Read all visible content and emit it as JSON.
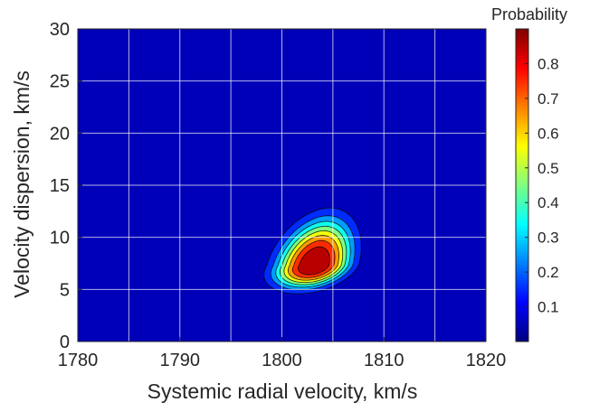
{
  "chart_data": {
    "type": "heatmap",
    "plot_style": "filled-contour",
    "xlabel": "Systemic radial velocity, km/s",
    "ylabel": "Velocity dispersion, km/s",
    "colorbar_label": "Probability",
    "xlim": [
      1780,
      1820
    ],
    "ylim": [
      0,
      30
    ],
    "x_ticks": [
      1780,
      1790,
      1800,
      1810,
      1820
    ],
    "x_tick_labels": [
      "1780",
      "1790",
      "1800",
      "1810",
      "1820"
    ],
    "y_ticks": [
      0,
      5,
      10,
      15,
      20,
      25,
      30
    ],
    "y_tick_labels": [
      "0",
      "5",
      "10",
      "15",
      "20",
      "25",
      "30"
    ],
    "colorbar_range": [
      0,
      0.9
    ],
    "colorbar_ticks": [
      0.1,
      0.2,
      0.3,
      0.4,
      0.5,
      0.6,
      0.7,
      0.8
    ],
    "colorbar_tick_labels": [
      "0.1",
      "0.2",
      "0.3",
      "0.4",
      "0.5",
      "0.6",
      "0.7",
      "0.8"
    ],
    "colormap": "jet",
    "grid": true,
    "peak": {
      "x": 1803.2,
      "y": 7.3,
      "value": 0.9
    },
    "contour_levels": [
      0.1,
      0.2,
      0.3,
      0.4,
      0.5,
      0.6,
      0.7,
      0.8
    ],
    "contours": [
      {
        "level": 0.1,
        "x_range": [
          1795.2,
          1810.6
        ],
        "y_range": [
          2.2,
          16.4
        ]
      },
      {
        "level": 0.2,
        "x_range": [
          1796.6,
          1808.9
        ],
        "y_range": [
          3.1,
          14.3
        ]
      },
      {
        "level": 0.3,
        "x_range": [
          1797.6,
          1808.1
        ],
        "y_range": [
          3.7,
          13.0
        ]
      },
      {
        "level": 0.4,
        "x_range": [
          1798.3,
          1807.5
        ],
        "y_range": [
          4.1,
          12.0
        ]
      },
      {
        "level": 0.5,
        "x_range": [
          1798.9,
          1806.9
        ],
        "y_range": [
          4.5,
          11.0
        ]
      },
      {
        "level": 0.6,
        "x_range": [
          1799.5,
          1806.4
        ],
        "y_range": [
          4.9,
          10.1
        ]
      },
      {
        "level": 0.7,
        "x_range": [
          1800.2,
          1805.8
        ],
        "y_range": [
          5.4,
          9.3
        ]
      },
      {
        "level": 0.8,
        "x_range": [
          1801.0,
          1805.2
        ],
        "y_range": [
          5.9,
          8.6
        ]
      }
    ],
    "distribution": {
      "center": [
        1803.2,
        7.3
      ],
      "peak_value": 0.9,
      "sigma_x_low": 2.65,
      "sigma_x_high": 2.45,
      "sigma_y_low": 1.45,
      "sigma_y_high": 2.95,
      "rho": -0.33,
      "shape": 1.3
    },
    "colors": {
      "background": "#00008f",
      "grid": "#ffffff",
      "contour_line": "#000000",
      "axis": "#262626"
    }
  }
}
